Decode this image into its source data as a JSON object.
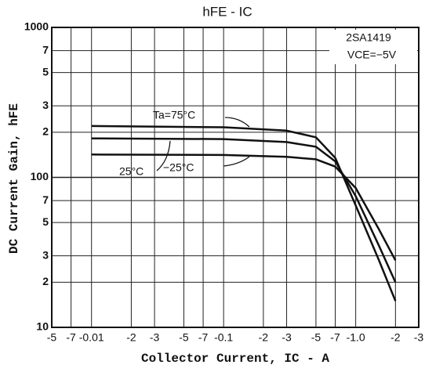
{
  "chart_data": {
    "type": "line",
    "title": "hFE - IC",
    "x_label": "Collector Current, IC - A",
    "y_label": "DC Current Gain, hFE",
    "x_log": true,
    "y_log": true,
    "grid": true,
    "xlim": [
      0.005,
      3
    ],
    "ylim": [
      10,
      1000
    ],
    "xticks": [
      {
        "value": 0.005,
        "label": "-5"
      },
      {
        "value": 0.007,
        "label": "-7"
      },
      {
        "value": 0.01,
        "label": "-0.01"
      },
      {
        "value": 0.02,
        "label": "-2"
      },
      {
        "value": 0.03,
        "label": "-3"
      },
      {
        "value": 0.05,
        "label": "-5"
      },
      {
        "value": 0.07,
        "label": "-7"
      },
      {
        "value": 0.1,
        "label": "-0.1"
      },
      {
        "value": 0.2,
        "label": "-2"
      },
      {
        "value": 0.3,
        "label": "-3"
      },
      {
        "value": 0.5,
        "label": "-5"
      },
      {
        "value": 0.7,
        "label": "-7"
      },
      {
        "value": 1.0,
        "label": "-1.0"
      },
      {
        "value": 2,
        "label": "-2"
      },
      {
        "value": 3,
        "label": "-3"
      }
    ],
    "yticks": [
      10,
      {
        "value": 20,
        "label": "2"
      },
      {
        "value": 30,
        "label": "3"
      },
      {
        "value": 50,
        "label": "5"
      },
      {
        "value": 70,
        "label": "7"
      },
      100,
      {
        "value": 200,
        "label": "2"
      },
      {
        "value": 300,
        "label": "3"
      },
      {
        "value": 500,
        "label": "5"
      },
      {
        "value": 700,
        "label": "7"
      },
      1000
    ],
    "x": [
      0.01,
      0.1,
      0.3,
      0.5,
      0.7,
      1.0,
      1.5,
      2.0
    ],
    "series": [
      {
        "name": "Ta=75°C",
        "color": "#111111",
        "values": [
          220,
          216,
          205,
          185,
          135,
          65,
          28,
          15
        ]
      },
      {
        "name": "25°C",
        "color": "#111111",
        "values": [
          182,
          180,
          172,
          160,
          128,
          75,
          35,
          20
        ]
      },
      {
        "name": "−25°C",
        "color": "#111111",
        "values": [
          142,
          141,
          137,
          132,
          118,
          85,
          45,
          28
        ]
      }
    ],
    "annotations": [
      "2SA1419",
      "VCE=−5V"
    ]
  }
}
